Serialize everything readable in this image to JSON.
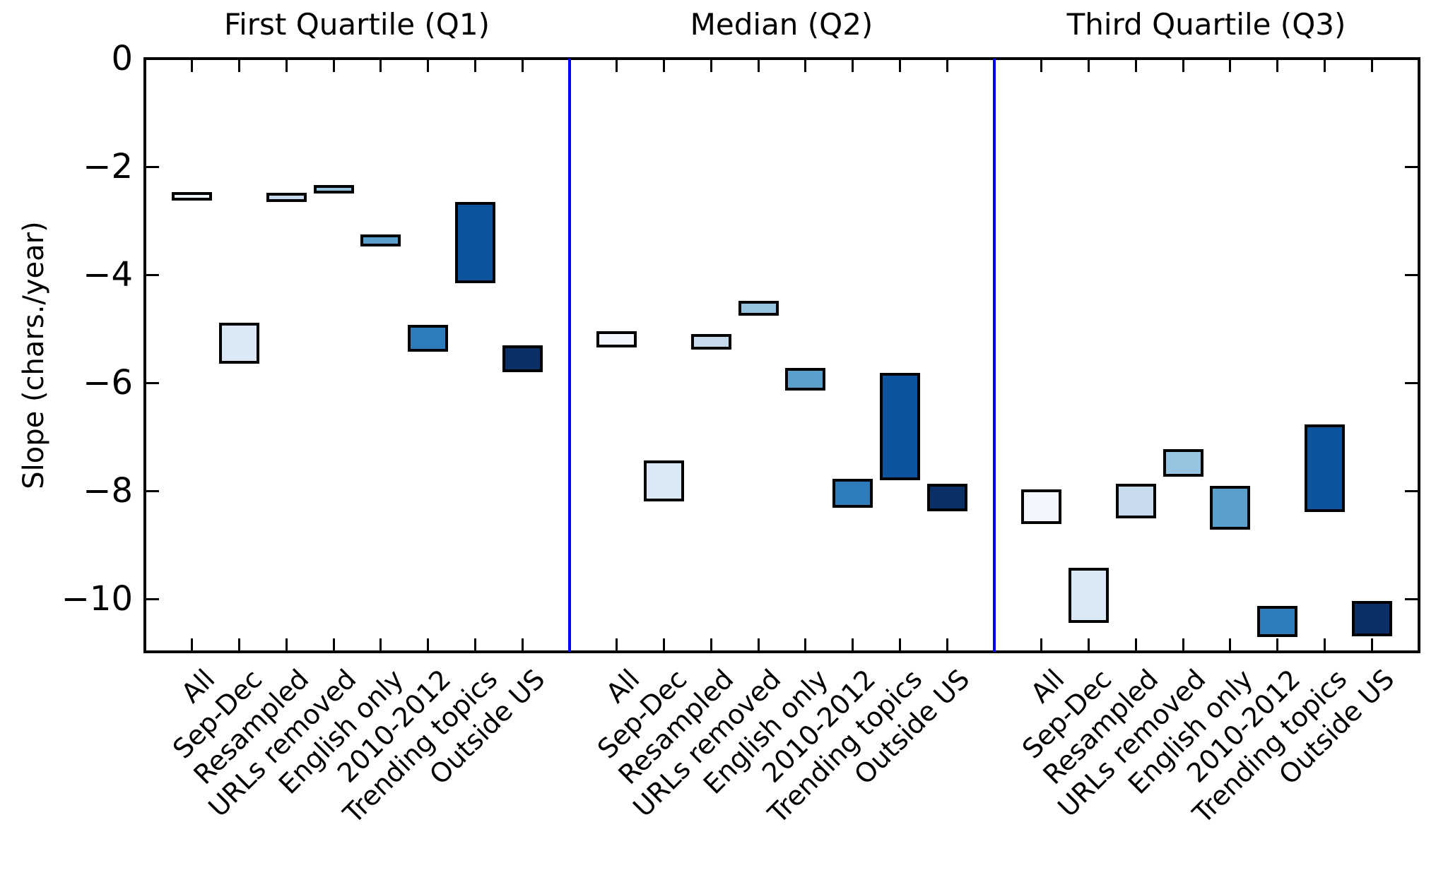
{
  "figure": {
    "background": "#ffffff",
    "spine_color": "#000000",
    "divider_color": "#0000ff",
    "bar_edge_color": "#000000"
  },
  "chart_data": {
    "type": "bar",
    "subtype": "floating-range-bars",
    "title": "",
    "xlabel": "",
    "ylabel": "Slope (chars./year)",
    "grid": false,
    "legend": false,
    "ylim": [
      0,
      -10.98
    ],
    "yticks": [
      0,
      -2,
      -4,
      -6,
      -8,
      -10
    ],
    "ytick_labels": [
      "0",
      "−2",
      "−4",
      "−6",
      "−8",
      "−10"
    ],
    "categories": [
      "All",
      "Sep-Dec",
      "Resampled",
      "URLs removed",
      "English only",
      "2010-2012",
      "Trending topics",
      "Outside US"
    ],
    "category_colors": [
      "#f2f7fd",
      "#dbe8f5",
      "#c8dbee",
      "#96c4e0",
      "#5aa0cd",
      "#2f7cba",
      "#0d549f",
      "#0a3066"
    ],
    "panels": [
      {
        "title": "First Quartile (Q1)",
        "series": [
          {
            "category": "All",
            "range": [
              -2.47,
              -2.63
            ]
          },
          {
            "category": "Sep-Dec",
            "range": [
              -4.89,
              -5.65
            ]
          },
          {
            "category": "Resampled",
            "range": [
              -2.49,
              -2.66
            ]
          },
          {
            "category": "URLs removed",
            "range": [
              -2.34,
              -2.5
            ]
          },
          {
            "category": "English only",
            "range": [
              -3.26,
              -3.48
            ]
          },
          {
            "category": "2010-2012",
            "range": [
              -4.93,
              -5.42
            ]
          },
          {
            "category": "Trending topics",
            "range": [
              -2.66,
              -4.16
            ]
          },
          {
            "category": "Outside US",
            "range": [
              -5.31,
              -5.81
            ]
          }
        ]
      },
      {
        "title": "Median (Q2)",
        "series": [
          {
            "category": "All",
            "range": [
              -5.05,
              -5.35
            ]
          },
          {
            "category": "Sep-Dec",
            "range": [
              -7.44,
              -8.2
            ]
          },
          {
            "category": "Resampled",
            "range": [
              -5.1,
              -5.39
            ]
          },
          {
            "category": "URLs removed",
            "range": [
              -4.48,
              -4.76
            ]
          },
          {
            "category": "English only",
            "range": [
              -5.72,
              -6.14
            ]
          },
          {
            "category": "2010-2012",
            "range": [
              -7.78,
              -8.31
            ]
          },
          {
            "category": "Trending topics",
            "range": [
              -5.82,
              -7.81
            ]
          },
          {
            "category": "Outside US",
            "range": [
              -7.87,
              -8.38
            ]
          }
        ]
      },
      {
        "title": "Third Quartile (Q3)",
        "series": [
          {
            "category": "All",
            "range": [
              -7.97,
              -8.61
            ]
          },
          {
            "category": "Sep-Dec",
            "range": [
              -9.43,
              -10.44
            ]
          },
          {
            "category": "Resampled",
            "range": [
              -7.87,
              -8.51
            ]
          },
          {
            "category": "URLs removed",
            "range": [
              -7.23,
              -7.74
            ]
          },
          {
            "category": "English only",
            "range": [
              -7.91,
              -8.72
            ]
          },
          {
            "category": "2010-2012",
            "range": [
              -10.13,
              -10.71
            ]
          },
          {
            "category": "Trending topics",
            "range": [
              -6.77,
              -8.39
            ]
          },
          {
            "category": "Outside US",
            "range": [
              -10.04,
              -10.69
            ]
          }
        ]
      }
    ]
  }
}
